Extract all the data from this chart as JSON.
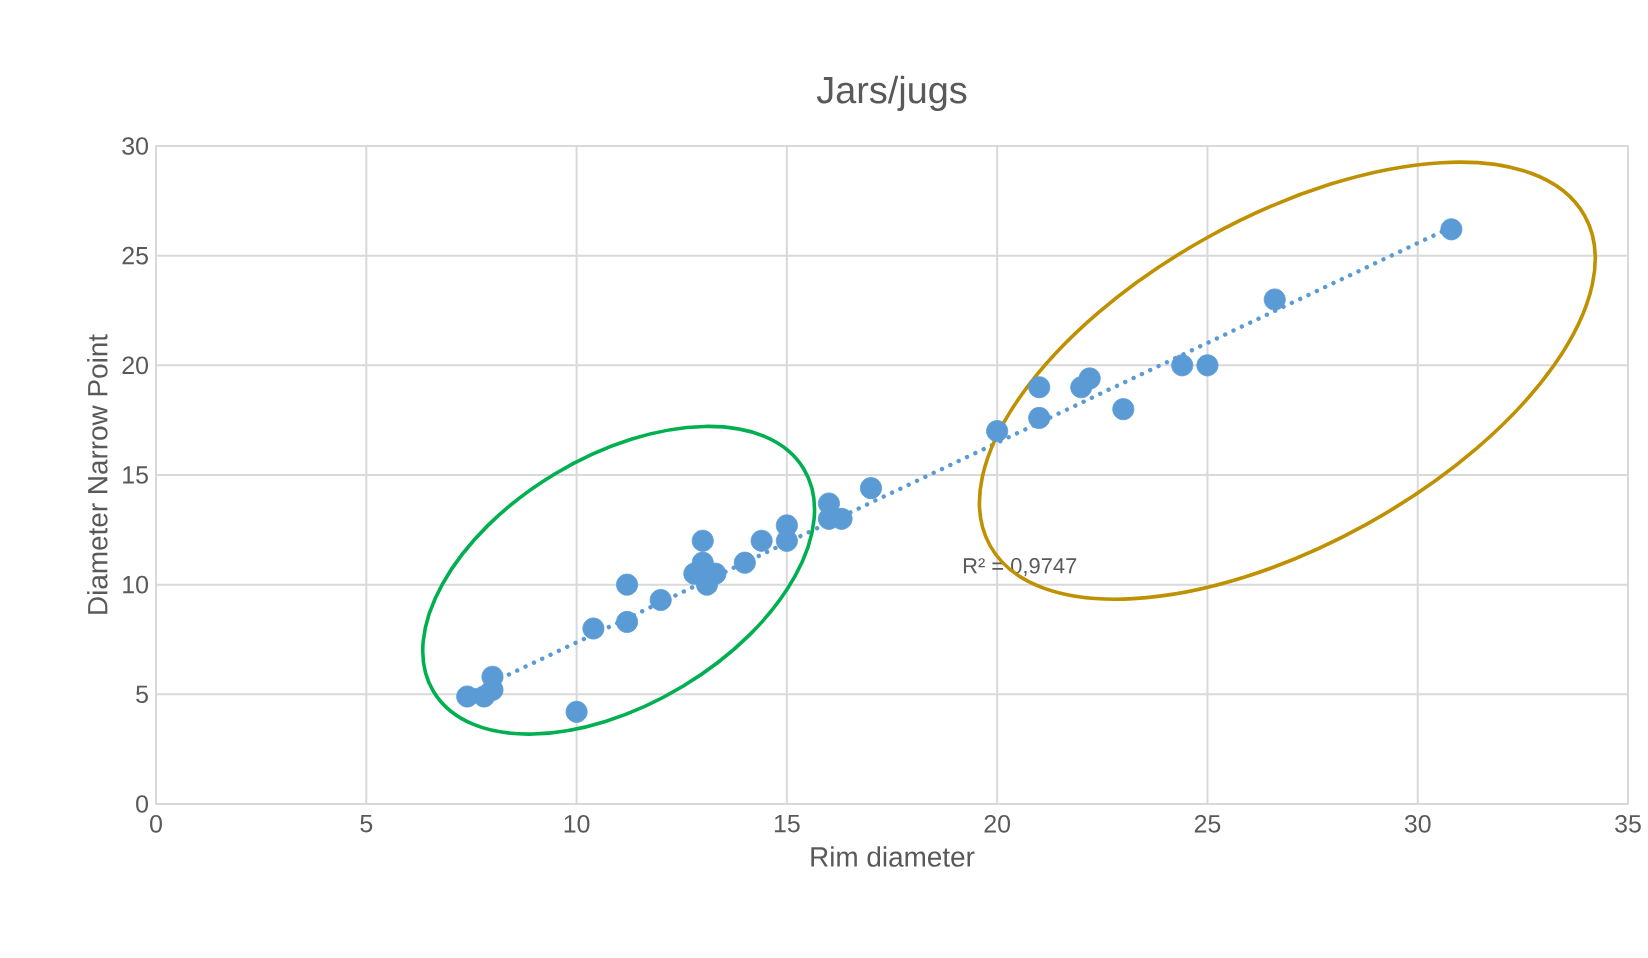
{
  "chart_data": {
    "type": "scatter",
    "title": "Jars/jugs",
    "xlabel": "Rim diameter",
    "ylabel": "Diameter Narrow Point",
    "xlim": [
      0,
      35
    ],
    "ylim": [
      0,
      30
    ],
    "xticks": [
      0,
      5,
      10,
      15,
      20,
      25,
      30,
      35
    ],
    "yticks": [
      0,
      5,
      10,
      15,
      20,
      25,
      30
    ],
    "grid": true,
    "marker": "circle",
    "annotations": [
      "R² = 0,9747"
    ],
    "series": [
      {
        "color": "#5b9bd5",
        "x": [
          7.4,
          7.8,
          8,
          8,
          10,
          10.4,
          11.2,
          11.2,
          12,
          12.8,
          13,
          13,
          13.3,
          13.1,
          14,
          14.4,
          15,
          15,
          16,
          16,
          16.3,
          17,
          20,
          21,
          21,
          22,
          22.2,
          23,
          24.4,
          25,
          26.6,
          30.8
        ],
        "values": [
          4.9,
          4.9,
          5.2,
          5.8,
          4.2,
          8,
          8.3,
          10,
          9.3,
          10.5,
          12,
          11,
          10.5,
          10,
          11,
          12,
          12.7,
          12,
          13.7,
          13,
          13,
          14.4,
          17,
          19,
          17.6,
          19,
          19.4,
          18,
          20,
          20,
          23,
          26.2
        ]
      },
      {
        "type": "line",
        "color": "#5b9bd5",
        "line_style": "dotted",
        "marker": "none",
        "x": [
          7.4,
          30.8
        ],
        "values": [
          5.0,
          26.3
        ]
      }
    ]
  }
}
